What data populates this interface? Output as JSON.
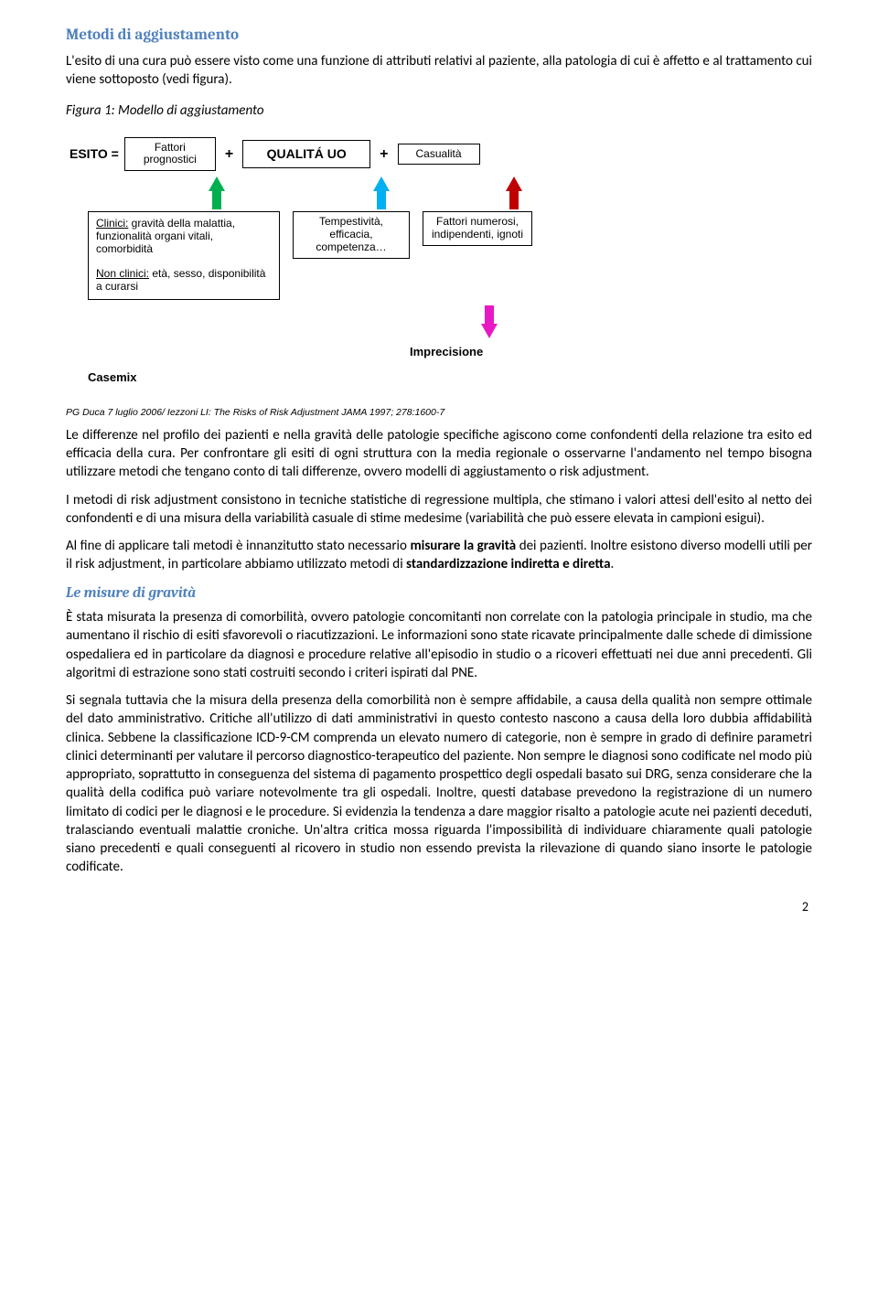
{
  "section1_title": "Metodi di aggiustamento",
  "p1": "L'esito di una cura può essere visto come una funzione di attributi relativi al paziente, alla patologia di cui è affetto e al trattamento cui viene sottoposto (vedi figura).",
  "fig_caption": "Figura 1: Modello di aggiustamento",
  "figure": {
    "esito_eq": "ESITO =",
    "box_fp_l1": "Fattori",
    "box_fp_l2": "prognostici",
    "box_qu": "QUALITÁ UO",
    "box_cs": "Casualità",
    "plus": "+",
    "box_b1_l1": "Clinici:",
    "box_b1_l1b": " gravità della malattia, funzionalità organi vitali, comorbidità",
    "box_b1_l2": "Non clinici:",
    "box_b1_l2b": " età, sesso, disponibilità a curarsi",
    "box_b2": "Tempestività, efficacia, competenza…",
    "box_b3": "Fattori numerosi, indipendenti, ignoti",
    "lbl_casemix": "Casemix",
    "lbl_imprec": "Imprecisione",
    "ref": "PG Duca 7 luglio 2006/ Iezzoni LI: The Risks of Risk Adjustment JAMA 1997; 278:1600-7"
  },
  "p2a": "Le differenze nel profilo dei pazienti e nella gravità delle patologie specifiche agiscono come confondenti della relazione tra esito ed efficacia della cura. Per confrontare gli esiti di ogni struttura con la media regionale o osservarne l'andamento nel tempo bisogna utilizzare metodi che tengano conto di tali differenze, ovvero modelli di aggiustamento o risk adjustment.",
  "p3": "I metodi di risk adjustment consistono in tecniche statistiche di regressione multipla, che stimano i valori attesi dell'esito al netto dei confondenti e di una misura della variabilità casuale di stime medesime (variabilità che può essere elevata in campioni esigui).",
  "p4a": "Al fine di applicare tali metodi è innanzitutto stato necessario ",
  "p4b": "misurare la gravità",
  "p4c": " dei pazienti. Inoltre esistono diverso modelli utili per il risk adjustment, in particolare abbiamo utilizzato metodi di ",
  "p4d": "standardizzazione indiretta e diretta",
  "p4e": ".",
  "section2_title": "Le misure di gravità",
  "p5": "È stata misurata la presenza di comorbilità, ovvero patologie concomitanti non correlate con la patologia principale in studio, ma che aumentano il rischio di esiti sfavorevoli o riacutizzazioni. Le informazioni sono state ricavate principalmente dalle schede di dimissione ospedaliera ed in particolare da diagnosi e procedure relative all'episodio in studio o a ricoveri effettuati nei due anni precedenti. Gli algoritmi di estrazione sono stati costruiti secondo i criteri ispirati dal PNE.",
  "p6": "Si segnala tuttavia che la misura della presenza della comorbilità non è sempre affidabile, a causa della qualità non sempre ottimale del dato amministrativo. Critiche all'utilizzo di dati amministrativi in questo contesto nascono a causa della loro dubbia affidabilità clinica. Sebbene la classificazione ICD-9-CM comprenda un elevato numero di categorie, non è sempre in grado di definire parametri clinici determinanti per valutare il percorso diagnostico-terapeutico del paziente. Non sempre le diagnosi sono codificate nel modo più appropriato, soprattutto in conseguenza del sistema di pagamento prospettico degli ospedali basato sui DRG, senza considerare che la qualità della codifica può variare notevolmente tra gli ospedali. Inoltre, questi database prevedono la registrazione di un numero limitato di codici per le diagnosi e le procedure.  Si evidenzia la tendenza a dare maggior risalto a patologie acute nei pazienti deceduti, tralasciando eventuali malattie croniche. Un'altra critica mossa riguarda l'impossibilità di individuare chiaramente quali patologie siano precedenti e quali conseguenti al ricovero in studio non essendo prevista la rilevazione di quando siano insorte le patologie codificate.",
  "page_num": "2"
}
